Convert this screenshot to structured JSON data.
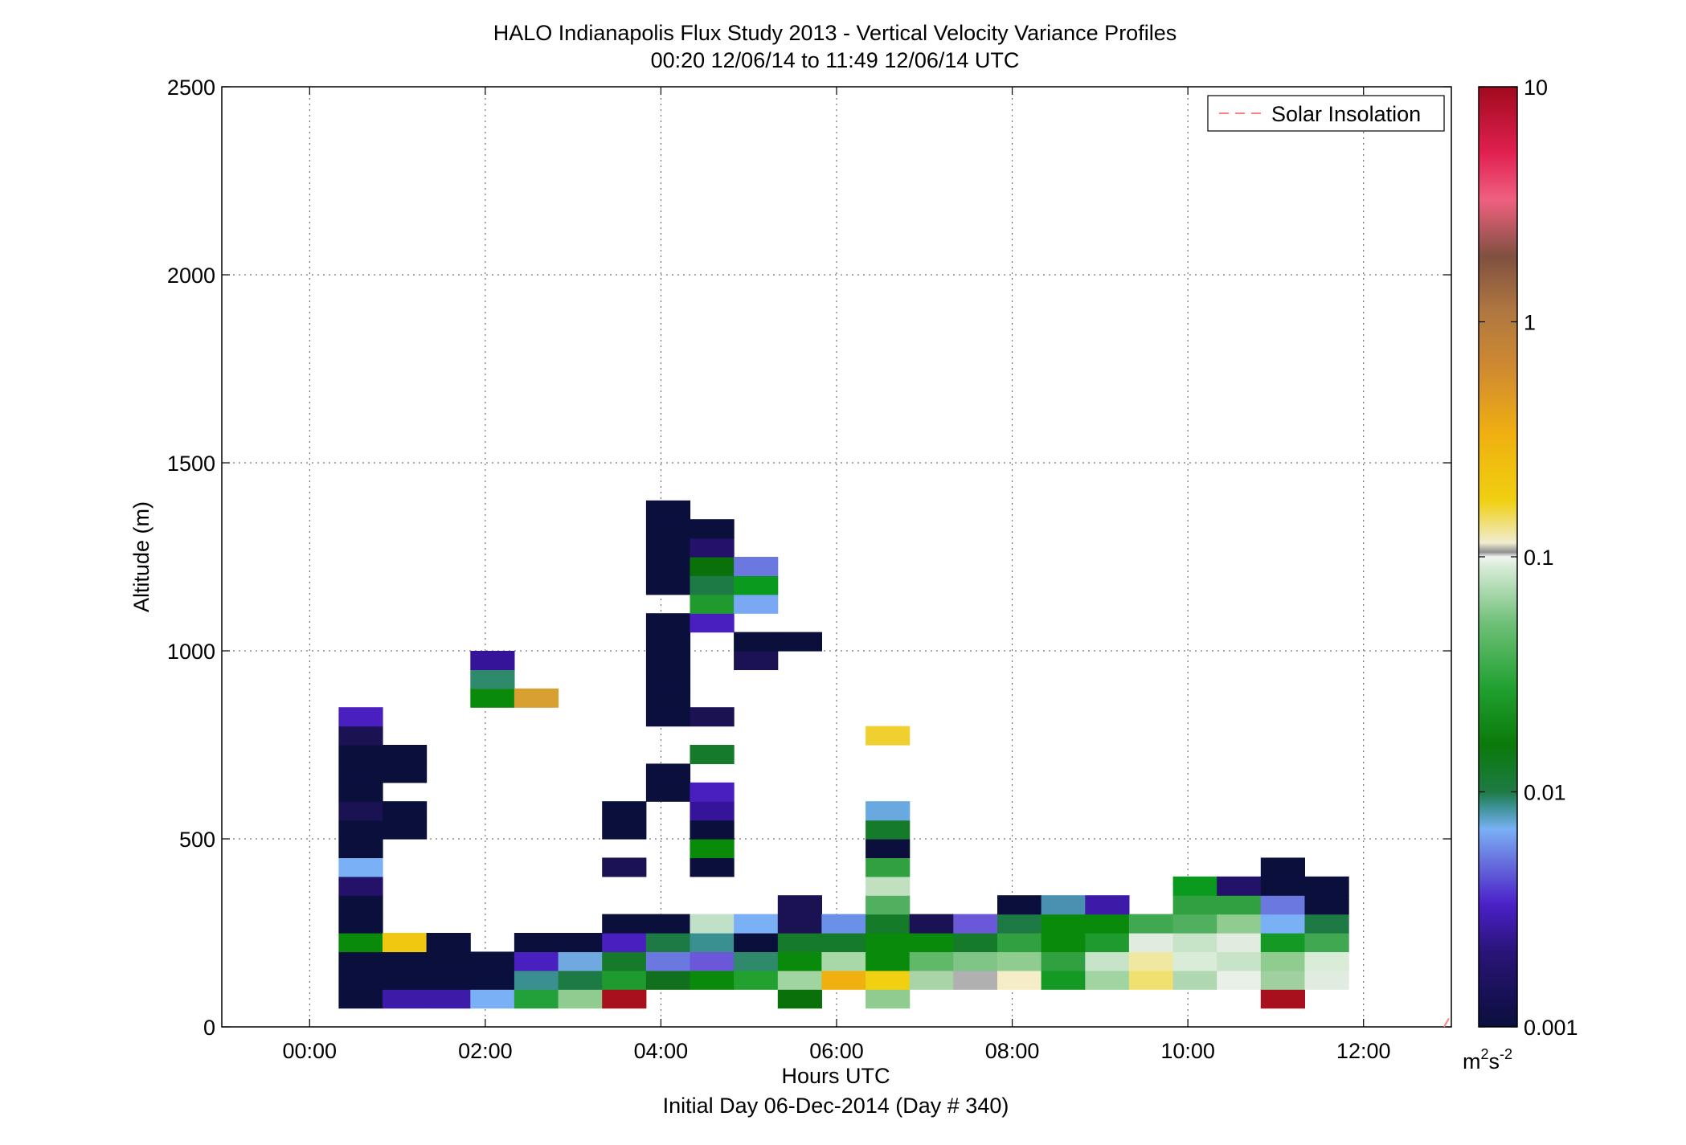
{
  "chart_data": {
    "type": "heatmap",
    "title": "HALO Indianapolis Flux Study 2013 - Vertical Velocity Variance Profiles",
    "subtitle": "00:20 12/06/14 to 11:49 12/06/14  UTC",
    "xlabel": "Hours UTC",
    "xlabel2": "Initial Day 06-Dec-2014 (Day # 340)",
    "ylabel": "Altitude (m)",
    "xlim": [
      -1,
      13
    ],
    "ylim": [
      0,
      2500
    ],
    "x_ticks": [
      0,
      2,
      4,
      6,
      8,
      10,
      12
    ],
    "x_tick_labels": [
      "00:00",
      "02:00",
      "04:00",
      "06:00",
      "08:00",
      "10:00",
      "12:00"
    ],
    "y_ticks": [
      0,
      500,
      1000,
      1500,
      2000,
      2500
    ],
    "y_tick_labels": [
      "0",
      "500",
      "1000",
      "1500",
      "2000",
      "2500"
    ],
    "grid": true,
    "legend": {
      "placement": "top-right",
      "entries": [
        {
          "label": "Solar Insolation",
          "color": "#ff8080",
          "style": "dashed"
        }
      ]
    },
    "colorbar": {
      "scale": "log",
      "range": [
        0.001,
        10
      ],
      "tick_values": [
        10,
        1,
        0.1,
        0.01,
        0.001
      ],
      "tick_labels": [
        "10",
        "1",
        "0.1",
        "0.01",
        "0.001"
      ],
      "unit_base": "m",
      "unit_exp1": "2",
      "unit_mid": "s",
      "unit_exp2": "-2"
    },
    "bin_width_hours": 0.5,
    "bin_height_m": 50,
    "cells": [
      {
        "t": 0.33,
        "z": 50,
        "c": "#0a0f3c"
      },
      {
        "t": 0.33,
        "z": 100,
        "c": "#0a0f3c"
      },
      {
        "t": 0.33,
        "z": 150,
        "c": "#0a0f3c"
      },
      {
        "t": 0.33,
        "z": 200,
        "c": "#0a8a0a"
      },
      {
        "t": 0.33,
        "z": 250,
        "c": "#0a0f3c"
      },
      {
        "t": 0.33,
        "z": 300,
        "c": "#0a0f3c"
      },
      {
        "t": 0.33,
        "z": 350,
        "c": "#24126a"
      },
      {
        "t": 0.33,
        "z": 400,
        "c": "#7ab0f5"
      },
      {
        "t": 0.33,
        "z": 450,
        "c": "#0a0f3c"
      },
      {
        "t": 0.33,
        "z": 500,
        "c": "#0a0f3c"
      },
      {
        "t": 0.33,
        "z": 550,
        "c": "#1a1252"
      },
      {
        "t": 0.33,
        "z": 600,
        "c": "#0a0f3c"
      },
      {
        "t": 0.33,
        "z": 650,
        "c": "#0a0f3c"
      },
      {
        "t": 0.33,
        "z": 700,
        "c": "#0a0f3c"
      },
      {
        "t": 0.33,
        "z": 750,
        "c": "#1a1252"
      },
      {
        "t": 0.33,
        "z": 800,
        "c": "#4a1fc0"
      },
      {
        "t": 0.83,
        "z": 50,
        "c": "#3e1aa8"
      },
      {
        "t": 0.83,
        "z": 100,
        "c": "#0a0f3c"
      },
      {
        "t": 0.83,
        "z": 150,
        "c": "#0a0f3c"
      },
      {
        "t": 0.83,
        "z": 200,
        "c": "#f0c810"
      },
      {
        "t": 0.83,
        "z": 500,
        "c": "#0a0f3c"
      },
      {
        "t": 0.83,
        "z": 550,
        "c": "#0a0f3c"
      },
      {
        "t": 0.83,
        "z": 650,
        "c": "#0a0f3c"
      },
      {
        "t": 0.83,
        "z": 700,
        "c": "#0a0f3c"
      },
      {
        "t": 1.33,
        "z": 50,
        "c": "#3e1aa8"
      },
      {
        "t": 1.33,
        "z": 100,
        "c": "#0a0f3c"
      },
      {
        "t": 1.33,
        "z": 150,
        "c": "#0a0f3c"
      },
      {
        "t": 1.33,
        "z": 200,
        "c": "#0a0f3c"
      },
      {
        "t": 1.83,
        "z": 50,
        "c": "#7ab0f5"
      },
      {
        "t": 1.83,
        "z": 100,
        "c": "#0a0f3c"
      },
      {
        "t": 1.83,
        "z": 150,
        "c": "#0a0f3c"
      },
      {
        "t": 1.83,
        "z": 850,
        "c": "#0a8a0a"
      },
      {
        "t": 1.83,
        "z": 900,
        "c": "#2e8a6a"
      },
      {
        "t": 1.83,
        "z": 950,
        "c": "#36149a"
      },
      {
        "t": 2.33,
        "z": 50,
        "c": "#22a03a"
      },
      {
        "t": 2.33,
        "z": 100,
        "c": "#3a9090"
      },
      {
        "t": 2.33,
        "z": 150,
        "c": "#4a1fc0"
      },
      {
        "t": 2.33,
        "z": 200,
        "c": "#0a0f3c"
      },
      {
        "t": 2.33,
        "z": 850,
        "c": "#d8a030"
      },
      {
        "t": 2.83,
        "z": 50,
        "c": "#90cc90"
      },
      {
        "t": 2.83,
        "z": 100,
        "c": "#1e7a44"
      },
      {
        "t": 2.83,
        "z": 150,
        "c": "#70a8e0"
      },
      {
        "t": 2.83,
        "z": 200,
        "c": "#0a0f3c"
      },
      {
        "t": 3.33,
        "z": 50,
        "c": "#a8101e"
      },
      {
        "t": 3.33,
        "z": 100,
        "c": "#1e9a2e"
      },
      {
        "t": 3.33,
        "z": 150,
        "c": "#157a2a"
      },
      {
        "t": 3.33,
        "z": 200,
        "c": "#4a1fc0"
      },
      {
        "t": 3.33,
        "z": 250,
        "c": "#0a0f3c"
      },
      {
        "t": 3.33,
        "z": 400,
        "c": "#1a1252"
      },
      {
        "t": 3.33,
        "z": 500,
        "c": "#0a0f3c"
      },
      {
        "t": 3.33,
        "z": 550,
        "c": "#0a0f3c"
      },
      {
        "t": 3.83,
        "z": 100,
        "c": "#10701e"
      },
      {
        "t": 3.83,
        "z": 150,
        "c": "#6a78e0"
      },
      {
        "t": 3.83,
        "z": 200,
        "c": "#1e7a44"
      },
      {
        "t": 3.83,
        "z": 250,
        "c": "#0a0f3c"
      },
      {
        "t": 3.83,
        "z": 600,
        "c": "#0a0f3c"
      },
      {
        "t": 3.83,
        "z": 650,
        "c": "#0a0f3c"
      },
      {
        "t": 3.83,
        "z": 800,
        "c": "#0a0f3c"
      },
      {
        "t": 3.83,
        "z": 850,
        "c": "#0a0f3c"
      },
      {
        "t": 3.83,
        "z": 900,
        "c": "#0a0f3c"
      },
      {
        "t": 3.83,
        "z": 950,
        "c": "#0a0f3c"
      },
      {
        "t": 3.83,
        "z": 1000,
        "c": "#0a0f3c"
      },
      {
        "t": 3.83,
        "z": 1050,
        "c": "#0a0f3c"
      },
      {
        "t": 3.83,
        "z": 1150,
        "c": "#0a0f3c"
      },
      {
        "t": 3.83,
        "z": 1200,
        "c": "#0a0f3c"
      },
      {
        "t": 3.83,
        "z": 1250,
        "c": "#0a0f3c"
      },
      {
        "t": 3.83,
        "z": 1300,
        "c": "#0a0f3c"
      },
      {
        "t": 3.83,
        "z": 1350,
        "c": "#0a0f3c"
      },
      {
        "t": 4.33,
        "z": 100,
        "c": "#0a8a0a"
      },
      {
        "t": 4.33,
        "z": 150,
        "c": "#6a58d8"
      },
      {
        "t": 4.33,
        "z": 200,
        "c": "#3a9090"
      },
      {
        "t": 4.33,
        "z": 250,
        "c": "#c0e0c8"
      },
      {
        "t": 4.33,
        "z": 400,
        "c": "#0a0f3c"
      },
      {
        "t": 4.33,
        "z": 450,
        "c": "#0a8a0a"
      },
      {
        "t": 4.33,
        "z": 500,
        "c": "#0a0f3c"
      },
      {
        "t": 4.33,
        "z": 550,
        "c": "#36149a"
      },
      {
        "t": 4.33,
        "z": 600,
        "c": "#4a1fc0"
      },
      {
        "t": 4.33,
        "z": 700,
        "c": "#157a2a"
      },
      {
        "t": 4.33,
        "z": 800,
        "c": "#1a1252"
      },
      {
        "t": 4.33,
        "z": 1050,
        "c": "#4a1fc0"
      },
      {
        "t": 4.33,
        "z": 1100,
        "c": "#1e9a2e"
      },
      {
        "t": 4.33,
        "z": 1150,
        "c": "#1e7a44"
      },
      {
        "t": 4.33,
        "z": 1200,
        "c": "#0a700a"
      },
      {
        "t": 4.33,
        "z": 1250,
        "c": "#24126a"
      },
      {
        "t": 4.33,
        "z": 1300,
        "c": "#0a0f3c"
      },
      {
        "t": 4.83,
        "z": 100,
        "c": "#22a030"
      },
      {
        "t": 4.83,
        "z": 150,
        "c": "#2e8a6a"
      },
      {
        "t": 4.83,
        "z": 200,
        "c": "#0a0f3c"
      },
      {
        "t": 4.83,
        "z": 250,
        "c": "#7ab0f5"
      },
      {
        "t": 4.83,
        "z": 950,
        "c": "#1a1252"
      },
      {
        "t": 4.83,
        "z": 1000,
        "c": "#0a0f3c"
      },
      {
        "t": 4.83,
        "z": 1100,
        "c": "#7aa8f5"
      },
      {
        "t": 4.83,
        "z": 1150,
        "c": "#0a9a1e"
      },
      {
        "t": 4.83,
        "z": 1200,
        "c": "#6a78e0"
      },
      {
        "t": 5.33,
        "z": 50,
        "c": "#0a700a"
      },
      {
        "t": 5.33,
        "z": 100,
        "c": "#a0d4a0"
      },
      {
        "t": 5.33,
        "z": 150,
        "c": "#0a8a0a"
      },
      {
        "t": 5.33,
        "z": 200,
        "c": "#157a2a"
      },
      {
        "t": 5.33,
        "z": 250,
        "c": "#1a1252"
      },
      {
        "t": 5.33,
        "z": 300,
        "c": "#1a1252"
      },
      {
        "t": 5.33,
        "z": 1000,
        "c": "#0a0f3c"
      },
      {
        "t": 5.83,
        "z": 100,
        "c": "#f0b010"
      },
      {
        "t": 5.83,
        "z": 150,
        "c": "#a8d8a8"
      },
      {
        "t": 5.83,
        "z": 200,
        "c": "#157a2a"
      },
      {
        "t": 5.83,
        "z": 250,
        "c": "#6a90e8"
      },
      {
        "t": 6.33,
        "z": 50,
        "c": "#90cc90"
      },
      {
        "t": 6.33,
        "z": 100,
        "c": "#f0d010"
      },
      {
        "t": 6.33,
        "z": 150,
        "c": "#0a8a0a"
      },
      {
        "t": 6.33,
        "z": 200,
        "c": "#0a8a0a"
      },
      {
        "t": 6.33,
        "z": 250,
        "c": "#157a2a"
      },
      {
        "t": 6.33,
        "z": 300,
        "c": "#50b060"
      },
      {
        "t": 6.33,
        "z": 350,
        "c": "#c0e0c0"
      },
      {
        "t": 6.33,
        "z": 400,
        "c": "#30a040"
      },
      {
        "t": 6.33,
        "z": 450,
        "c": "#0a0f3c"
      },
      {
        "t": 6.33,
        "z": 500,
        "c": "#157a2a"
      },
      {
        "t": 6.33,
        "z": 550,
        "c": "#6aa8e0"
      },
      {
        "t": 6.33,
        "z": 750,
        "c": "#f0d030"
      },
      {
        "t": 6.83,
        "z": 100,
        "c": "#a8d4a8"
      },
      {
        "t": 6.83,
        "z": 150,
        "c": "#60b868"
      },
      {
        "t": 6.83,
        "z": 200,
        "c": "#0a8a0a"
      },
      {
        "t": 6.83,
        "z": 250,
        "c": "#1a1252"
      },
      {
        "t": 7.33,
        "z": 100,
        "c": "#b0b0b0"
      },
      {
        "t": 7.33,
        "z": 150,
        "c": "#80c488"
      },
      {
        "t": 7.33,
        "z": 200,
        "c": "#157a2a"
      },
      {
        "t": 7.33,
        "z": 250,
        "c": "#6a58d8"
      },
      {
        "t": 7.83,
        "z": 100,
        "c": "#f5ecc8"
      },
      {
        "t": 7.83,
        "z": 150,
        "c": "#90cc90"
      },
      {
        "t": 7.83,
        "z": 200,
        "c": "#30a040"
      },
      {
        "t": 7.83,
        "z": 250,
        "c": "#1e7a44"
      },
      {
        "t": 7.83,
        "z": 300,
        "c": "#0a0f3c"
      },
      {
        "t": 8.33,
        "z": 100,
        "c": "#149a24"
      },
      {
        "t": 8.33,
        "z": 150,
        "c": "#30a040"
      },
      {
        "t": 8.33,
        "z": 200,
        "c": "#0a8a0a"
      },
      {
        "t": 8.33,
        "z": 250,
        "c": "#0a8a0a"
      },
      {
        "t": 8.33,
        "z": 300,
        "c": "#4a90b0"
      },
      {
        "t": 8.83,
        "z": 100,
        "c": "#a0d4a0"
      },
      {
        "t": 8.83,
        "z": 150,
        "c": "#c8e4c8"
      },
      {
        "t": 8.83,
        "z": 200,
        "c": "#1e9a2e"
      },
      {
        "t": 8.83,
        "z": 250,
        "c": "#0a8a0a"
      },
      {
        "t": 8.83,
        "z": 300,
        "c": "#3e1aa8"
      },
      {
        "t": 9.33,
        "z": 100,
        "c": "#f0e070"
      },
      {
        "t": 9.33,
        "z": 150,
        "c": "#f0e8a0"
      },
      {
        "t": 9.33,
        "z": 200,
        "c": "#e0ece0"
      },
      {
        "t": 9.33,
        "z": 250,
        "c": "#40a850"
      },
      {
        "t": 9.83,
        "z": 100,
        "c": "#b0d8b0"
      },
      {
        "t": 9.83,
        "z": 150,
        "c": "#d8ecd8"
      },
      {
        "t": 9.83,
        "z": 200,
        "c": "#c8e4c8"
      },
      {
        "t": 9.83,
        "z": 250,
        "c": "#50b060"
      },
      {
        "t": 9.83,
        "z": 300,
        "c": "#30a040"
      },
      {
        "t": 9.83,
        "z": 350,
        "c": "#0a9a1e"
      },
      {
        "t": 10.33,
        "z": 100,
        "c": "#e8f0e8"
      },
      {
        "t": 10.33,
        "z": 150,
        "c": "#c8e4c8"
      },
      {
        "t": 10.33,
        "z": 200,
        "c": "#e0ece0"
      },
      {
        "t": 10.33,
        "z": 250,
        "c": "#90cc90"
      },
      {
        "t": 10.33,
        "z": 300,
        "c": "#30a040"
      },
      {
        "t": 10.33,
        "z": 350,
        "c": "#24126a"
      },
      {
        "t": 10.83,
        "z": 50,
        "c": "#a8101e"
      },
      {
        "t": 10.83,
        "z": 100,
        "c": "#a0d0a0"
      },
      {
        "t": 10.83,
        "z": 150,
        "c": "#90cc90"
      },
      {
        "t": 10.83,
        "z": 200,
        "c": "#149a24"
      },
      {
        "t": 10.83,
        "z": 250,
        "c": "#7ab0f5"
      },
      {
        "t": 10.83,
        "z": 300,
        "c": "#6a78e0"
      },
      {
        "t": 10.83,
        "z": 350,
        "c": "#0a0f3c"
      },
      {
        "t": 10.83,
        "z": 400,
        "c": "#0a0f3c"
      },
      {
        "t": 11.33,
        "z": 100,
        "c": "#e0ece0"
      },
      {
        "t": 11.33,
        "z": 150,
        "c": "#d8ecd8"
      },
      {
        "t": 11.33,
        "z": 200,
        "c": "#40a850"
      },
      {
        "t": 11.33,
        "z": 250,
        "c": "#1e7a44"
      },
      {
        "t": 11.33,
        "z": 300,
        "c": "#0a0f3c"
      },
      {
        "t": 11.33,
        "z": 350,
        "c": "#0a0f3c"
      }
    ]
  }
}
